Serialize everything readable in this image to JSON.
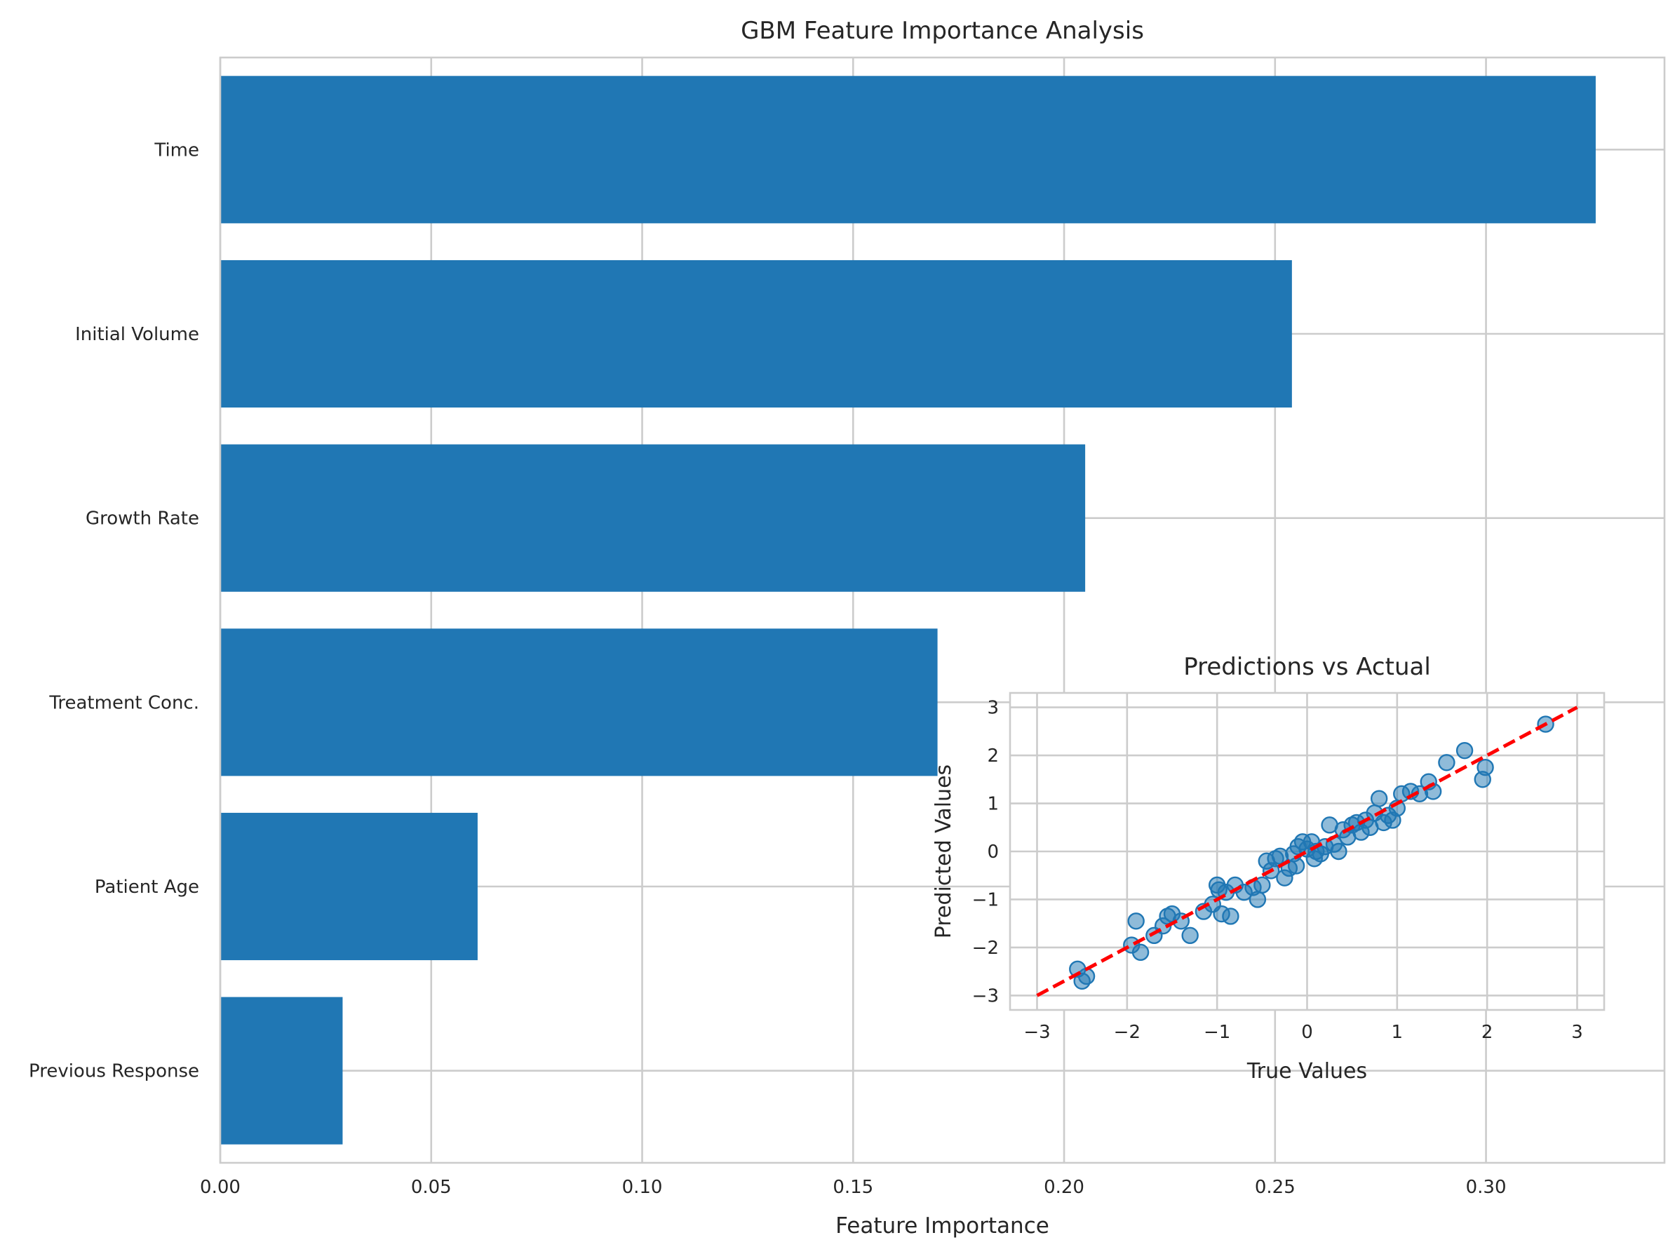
{
  "colors": {
    "bar": "#2077b4",
    "scatter_fill": "#2077b4",
    "ideal_line": "#ff0000",
    "grid": "#cccccc",
    "background": "#ffffff"
  },
  "chart_data": [
    {
      "type": "bar",
      "orientation": "horizontal",
      "title": "GBM Feature Importance Analysis",
      "xlabel": "Feature Importance",
      "ylabel": "",
      "categories": [
        "Time",
        "Initial Volume",
        "Growth Rate",
        "Treatment Conc.",
        "Patient Age",
        "Previous Response"
      ],
      "values": [
        0.326,
        0.254,
        0.205,
        0.17,
        0.061,
        0.029
      ],
      "xlim": [
        0.0,
        0.3423
      ],
      "xticks": [
        0.0,
        0.05,
        0.1,
        0.15,
        0.2,
        0.25,
        0.3
      ],
      "xtick_labels": [
        "0.00",
        "0.05",
        "0.10",
        "0.15",
        "0.20",
        "0.25",
        "0.30"
      ],
      "grid": true
    },
    {
      "type": "scatter",
      "title": "Predictions vs Actual",
      "xlabel": "True Values",
      "ylabel": "Predicted Values",
      "xlim": [
        -3.3,
        3.3
      ],
      "ylim": [
        -3.3,
        3.3
      ],
      "xticks": [
        -3,
        -2,
        -1,
        0,
        1,
        2,
        3
      ],
      "xtick_labels": [
        "−3",
        "−2",
        "−1",
        "0",
        "1",
        "2",
        "3"
      ],
      "yticks": [
        -3,
        -2,
        -1,
        0,
        1,
        2,
        3
      ],
      "ytick_labels": [
        "−3",
        "−2",
        "−1",
        "0",
        "1",
        "2",
        "3"
      ],
      "grid": true,
      "reference_line": {
        "x": [
          -3,
          3
        ],
        "y": [
          -3,
          3
        ],
        "style": "dashed"
      },
      "points": [
        {
          "x": -2.55,
          "y": -2.45
        },
        {
          "x": -2.5,
          "y": -2.7
        },
        {
          "x": -2.45,
          "y": -2.6
        },
        {
          "x": -1.95,
          "y": -1.95
        },
        {
          "x": -1.9,
          "y": -1.45
        },
        {
          "x": -1.85,
          "y": -2.1
        },
        {
          "x": -1.7,
          "y": -1.75
        },
        {
          "x": -1.6,
          "y": -1.55
        },
        {
          "x": -1.55,
          "y": -1.35
        },
        {
          "x": -1.5,
          "y": -1.3
        },
        {
          "x": -1.4,
          "y": -1.45
        },
        {
          "x": -1.3,
          "y": -1.75
        },
        {
          "x": -1.15,
          "y": -1.25
        },
        {
          "x": -1.05,
          "y": -1.1
        },
        {
          "x": -1.0,
          "y": -0.7
        },
        {
          "x": -0.98,
          "y": -0.8
        },
        {
          "x": -0.95,
          "y": -1.3
        },
        {
          "x": -0.9,
          "y": -0.85
        },
        {
          "x": -0.85,
          "y": -1.35
        },
        {
          "x": -0.8,
          "y": -0.7
        },
        {
          "x": -0.7,
          "y": -0.85
        },
        {
          "x": -0.6,
          "y": -0.75
        },
        {
          "x": -0.55,
          "y": -1.0
        },
        {
          "x": -0.5,
          "y": -0.7
        },
        {
          "x": -0.45,
          "y": -0.2
        },
        {
          "x": -0.4,
          "y": -0.4
        },
        {
          "x": -0.35,
          "y": -0.15
        },
        {
          "x": -0.3,
          "y": -0.1
        },
        {
          "x": -0.25,
          "y": -0.55
        },
        {
          "x": -0.2,
          "y": -0.35
        },
        {
          "x": -0.15,
          "y": -0.05
        },
        {
          "x": -0.12,
          "y": -0.3
        },
        {
          "x": -0.1,
          "y": 0.1
        },
        {
          "x": -0.05,
          "y": 0.2
        },
        {
          "x": 0.0,
          "y": 0.05
        },
        {
          "x": 0.05,
          "y": 0.2
        },
        {
          "x": 0.08,
          "y": -0.15
        },
        {
          "x": 0.1,
          "y": 0.0
        },
        {
          "x": 0.15,
          "y": -0.05
        },
        {
          "x": 0.2,
          "y": 0.1
        },
        {
          "x": 0.25,
          "y": 0.55
        },
        {
          "x": 0.3,
          "y": 0.15
        },
        {
          "x": 0.35,
          "y": 0.0
        },
        {
          "x": 0.4,
          "y": 0.45
        },
        {
          "x": 0.45,
          "y": 0.3
        },
        {
          "x": 0.5,
          "y": 0.55
        },
        {
          "x": 0.55,
          "y": 0.6
        },
        {
          "x": 0.6,
          "y": 0.4
        },
        {
          "x": 0.65,
          "y": 0.65
        },
        {
          "x": 0.7,
          "y": 0.5
        },
        {
          "x": 0.75,
          "y": 0.8
        },
        {
          "x": 0.8,
          "y": 1.1
        },
        {
          "x": 0.85,
          "y": 0.6
        },
        {
          "x": 0.9,
          "y": 0.75
        },
        {
          "x": 0.95,
          "y": 0.65
        },
        {
          "x": 1.0,
          "y": 0.9
        },
        {
          "x": 1.05,
          "y": 1.2
        },
        {
          "x": 1.15,
          "y": 1.25
        },
        {
          "x": 1.25,
          "y": 1.2
        },
        {
          "x": 1.35,
          "y": 1.45
        },
        {
          "x": 1.4,
          "y": 1.25
        },
        {
          "x": 1.55,
          "y": 1.85
        },
        {
          "x": 1.75,
          "y": 2.1
        },
        {
          "x": 1.95,
          "y": 1.5
        },
        {
          "x": 1.98,
          "y": 1.75
        },
        {
          "x": 2.65,
          "y": 2.65
        }
      ]
    }
  ]
}
